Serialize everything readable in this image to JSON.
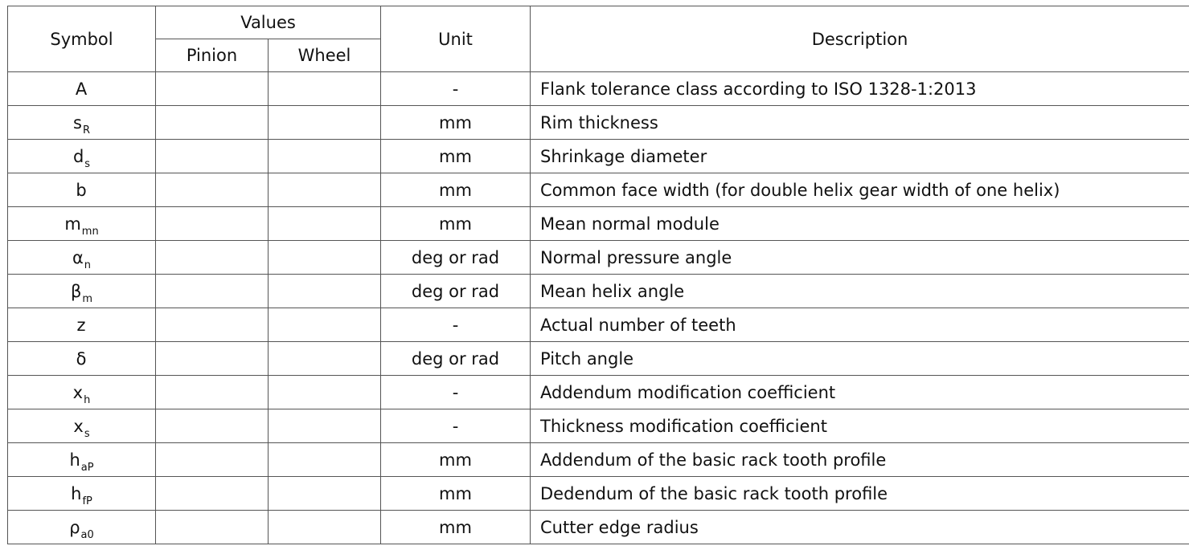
{
  "headers": {
    "symbol": "Symbol",
    "values": "Values",
    "pinion": "Pinion",
    "wheel": "Wheel",
    "unit": "Unit",
    "description": "Description"
  },
  "rows": [
    {
      "sym": "A",
      "sub": "",
      "unit": "-",
      "desc": "Flank tolerance class according to ISO 1328-1:2013"
    },
    {
      "sym": "s",
      "sub": "R",
      "unit": "mm",
      "desc": "Rim thickness"
    },
    {
      "sym": "d",
      "sub": "s",
      "unit": "mm",
      "desc": "Shrinkage diameter"
    },
    {
      "sym": "b",
      "sub": "",
      "unit": "mm",
      "desc": "Common face width (for double helix gear width of one helix)"
    },
    {
      "sym": "m",
      "sub": "mn",
      "unit": "mm",
      "desc": "Mean normal module"
    },
    {
      "sym": "α",
      "sub": "n",
      "unit": "deg or rad",
      "desc": "Normal pressure angle"
    },
    {
      "sym": "β",
      "sub": "m",
      "unit": "deg or rad",
      "desc": "Mean helix angle"
    },
    {
      "sym": "z",
      "sub": "",
      "unit": "-",
      "desc": "Actual number of teeth"
    },
    {
      "sym": "δ",
      "sub": "",
      "unit": "deg or rad",
      "desc": "Pitch angle"
    },
    {
      "sym": "x",
      "sub": "h",
      "unit": "-",
      "desc": "Addendum modification coefficient"
    },
    {
      "sym": "x",
      "sub": "s",
      "unit": "-",
      "desc": "Thickness modification coefficient"
    },
    {
      "sym": "h",
      "sub": "aP",
      "unit": "mm",
      "desc": "Addendum of the basic rack tooth profile"
    },
    {
      "sym": "h",
      "sub": "fP",
      "unit": "mm",
      "desc": "Dedendum of the basic rack tooth profile"
    },
    {
      "sym": "ρ",
      "sub": "a0",
      "unit": "mm",
      "desc": "Cutter edge radius"
    }
  ]
}
